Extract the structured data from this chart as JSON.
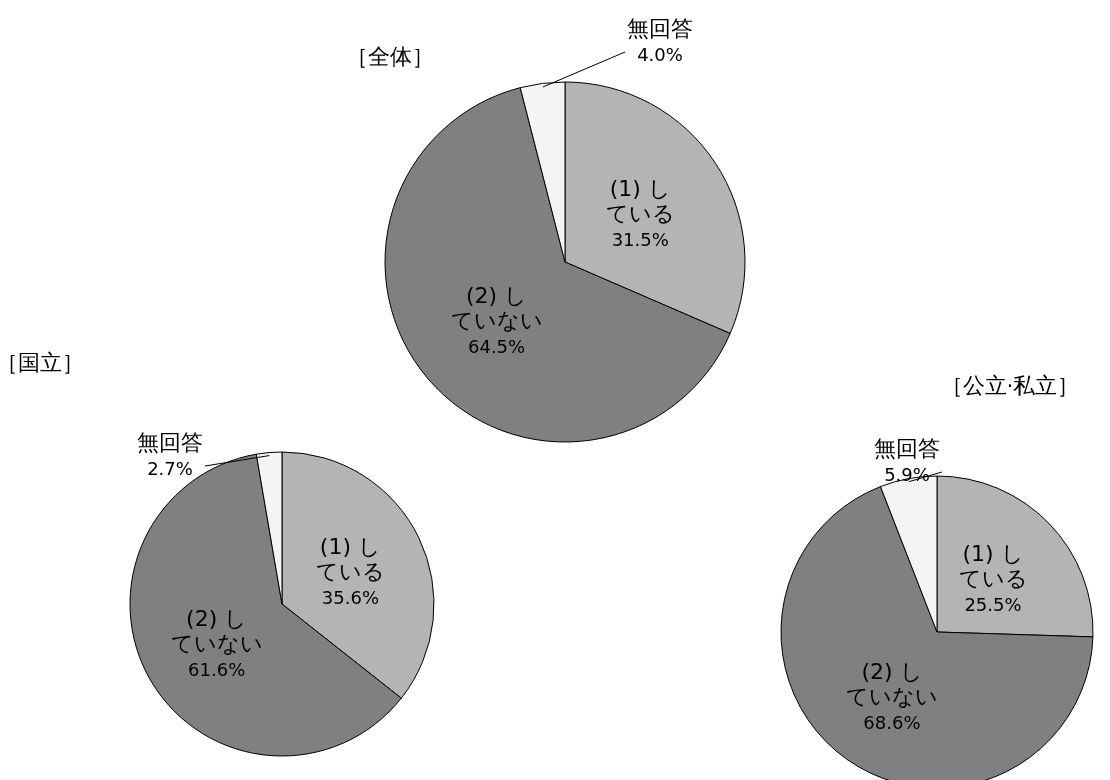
{
  "chart_data": [
    {
      "type": "pie",
      "title": "［全体］",
      "categories": [
        "(1) している",
        "(2) していない",
        "無回答"
      ],
      "values": [
        31.5,
        64.5,
        4.0
      ],
      "value_labels": [
        "31.5%",
        "64.5%",
        "4.0%"
      ],
      "colors": [
        "#b4b4b4",
        "#808080",
        "#f4f4f4"
      ]
    },
    {
      "type": "pie",
      "title": "［国立］",
      "categories": [
        "(1) している",
        "(2) していない",
        "無回答"
      ],
      "values": [
        35.6,
        61.6,
        2.7
      ],
      "value_labels": [
        "35.6%",
        "61.6%",
        "2.7%"
      ],
      "colors": [
        "#b4b4b4",
        "#808080",
        "#f4f4f4"
      ]
    },
    {
      "type": "pie",
      "title": "［公立·私立］",
      "categories": [
        "(1) している",
        "(2) していない",
        "無回答"
      ],
      "values": [
        25.5,
        68.6,
        5.9
      ],
      "value_labels": [
        "25.5%",
        "68.6%",
        "5.9%"
      ],
      "colors": [
        "#b4b4b4",
        "#808080",
        "#f4f4f4"
      ]
    }
  ]
}
